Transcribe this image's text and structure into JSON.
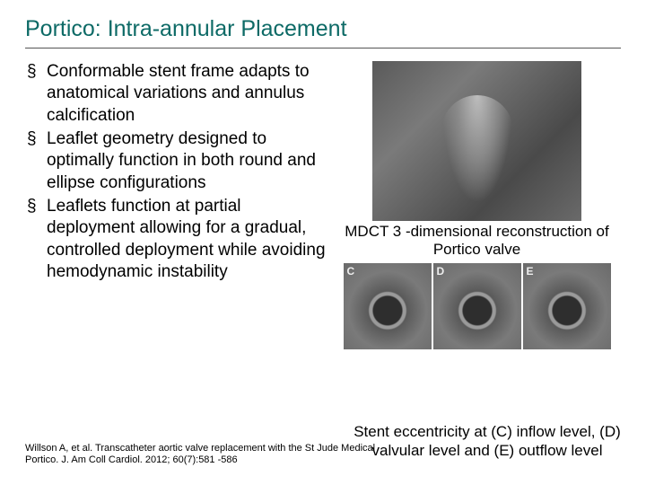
{
  "title": "Portico:  Intra-annular Placement",
  "bullets": [
    "Conformable stent frame adapts to anatomical variations and annulus calcification",
    "Leaflet geometry designed to optimally function in both round and ellipse configurations",
    "Leaflets function at partial deployment allowing for a gradual, controlled deployment while avoiding hemodynamic instability"
  ],
  "figTop": {
    "caption": "MDCT 3 -dimensional reconstruction of Portico valve"
  },
  "figRow": {
    "labels": [
      "C",
      "D",
      "E"
    ],
    "caption": "Stent eccentricity at (C) inflow level, (D) valvular level and (E) outflow level"
  },
  "citation": "Willson A, et al.  Transcatheter aortic valve replacement with the St Jude Medical Portico. J. Am Coll Cardiol. 2012; 60(7):581 -586",
  "colors": {
    "title": "#0d6a66",
    "text": "#000000",
    "background": "#ffffff"
  }
}
